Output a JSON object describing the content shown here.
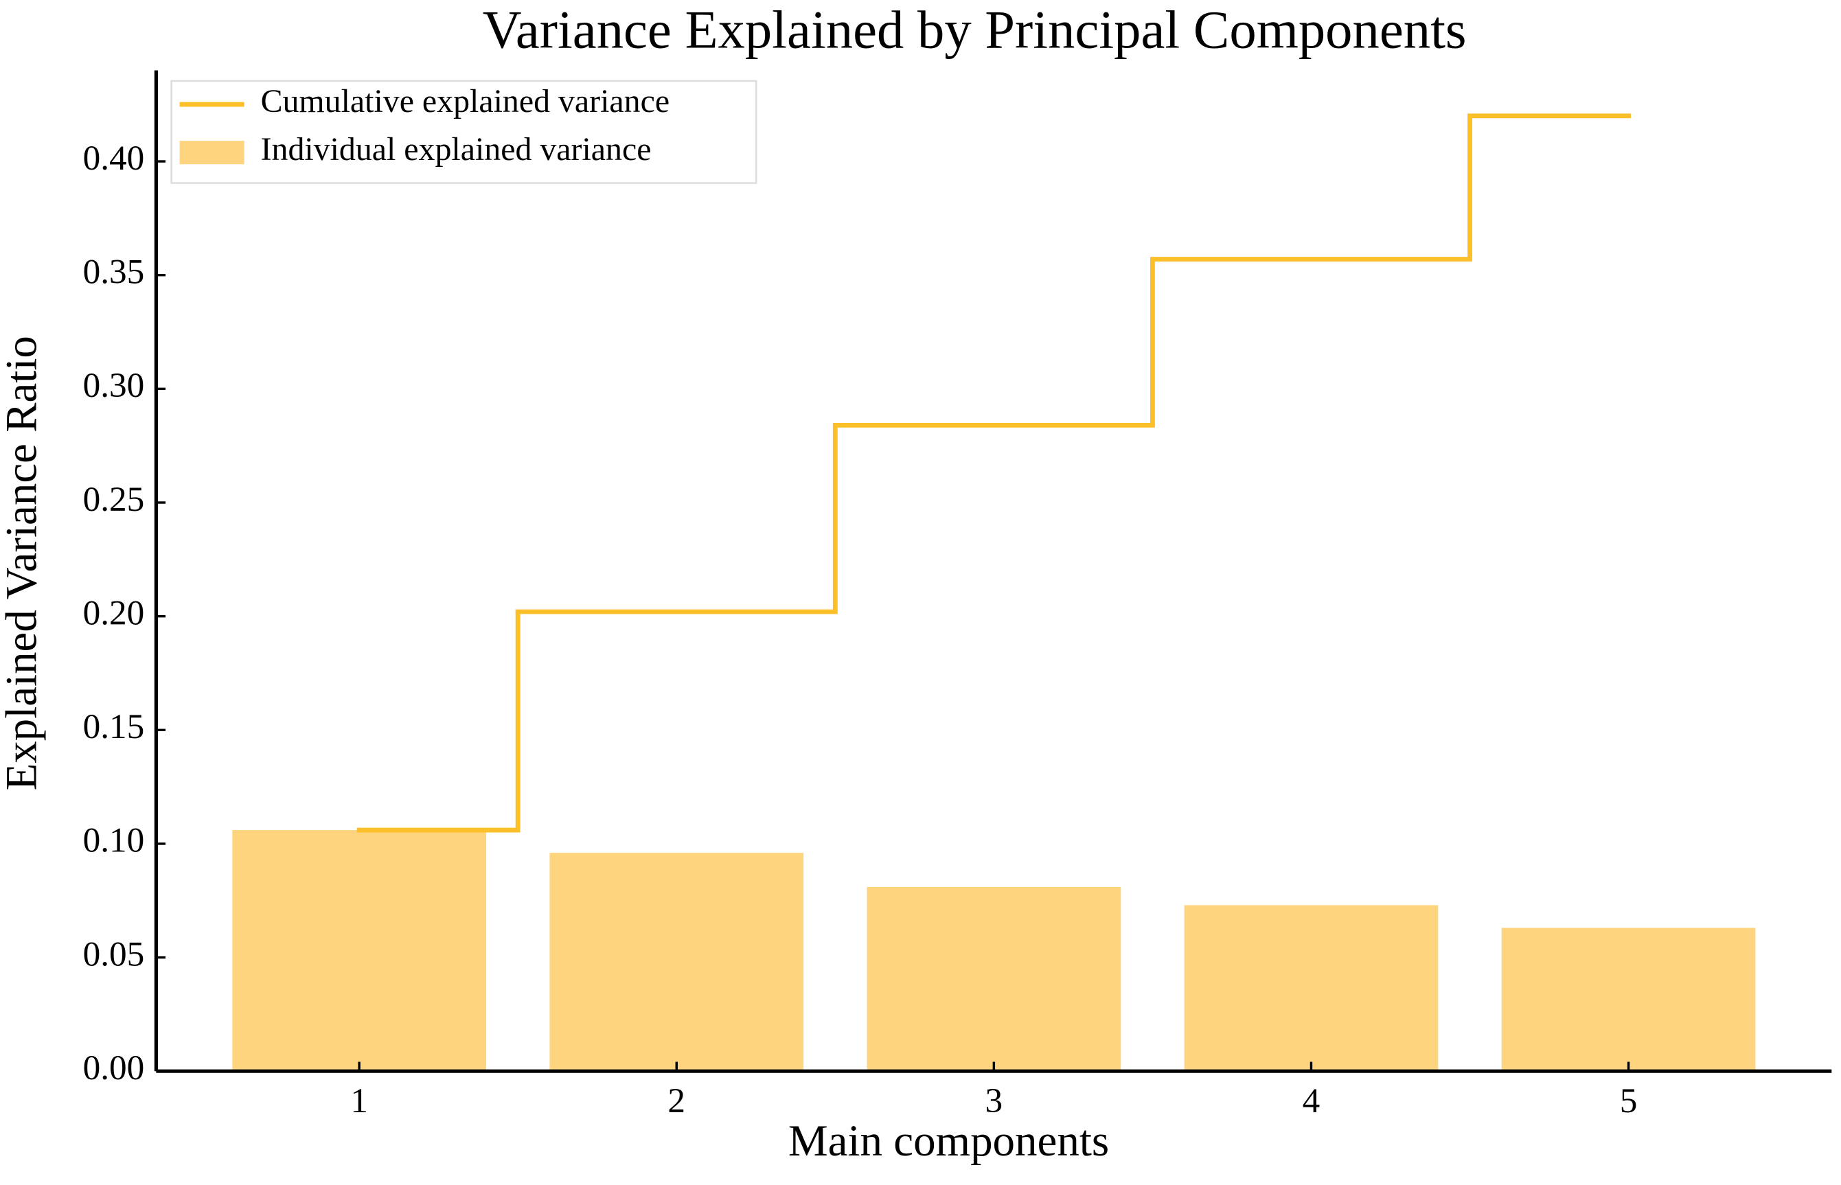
{
  "chart_data": {
    "type": "bar",
    "title": "Variance Explained by Principal Components",
    "xlabel": "Main components",
    "ylabel": "Explained Variance Ratio",
    "x": [
      1,
      2,
      3,
      4,
      5
    ],
    "series": [
      {
        "name": "Cumulative explained variance",
        "type": "step",
        "color": "#fbbf2a",
        "values": [
          0.106,
          0.202,
          0.284,
          0.357,
          0.42
        ]
      },
      {
        "name": "Individual explained variance",
        "type": "bar",
        "color": "#fed47f",
        "values": [
          0.106,
          0.096,
          0.081,
          0.073,
          0.063
        ]
      }
    ],
    "xlim": [
      0.36,
      5.64
    ],
    "xticks": [
      1,
      2,
      3,
      4,
      5
    ],
    "ylim": [
      0,
      0.44
    ],
    "yticks": [
      {
        "value": 0,
        "label": "0.00"
      },
      {
        "value": 0.05,
        "label": "0.05"
      },
      {
        "value": 0.1,
        "label": "0.10"
      },
      {
        "value": 0.15,
        "label": "0.15"
      },
      {
        "value": 0.2,
        "label": "0.20"
      },
      {
        "value": 0.25,
        "label": "0.25"
      },
      {
        "value": 0.3,
        "label": "0.30"
      },
      {
        "value": 0.35,
        "label": "0.35"
      },
      {
        "value": 0.4,
        "label": "0.40"
      }
    ],
    "legend": "upper left"
  }
}
